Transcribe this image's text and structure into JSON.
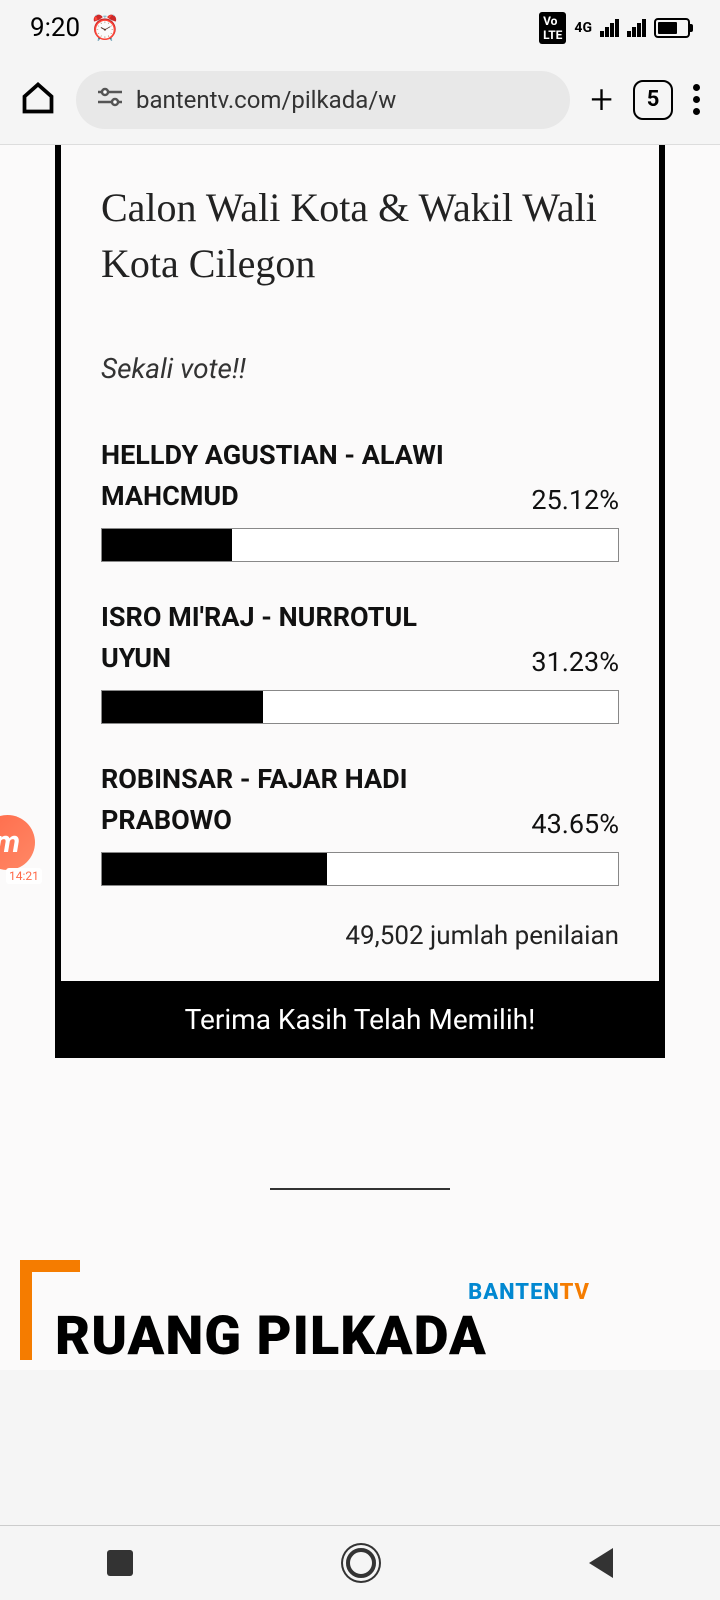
{
  "statusBar": {
    "time": "9:20",
    "network": "4G"
  },
  "browser": {
    "url": "bantentv.com/pilkada/w",
    "tabCount": "5"
  },
  "poll": {
    "title": "Calon Wali Kota & Wakil Wali Kota Cilegon",
    "subtitle": "Sekali vote!!",
    "options": [
      {
        "name": "HELLDY AGUSTIAN - ALAWI MAHCMUD",
        "percent": "25.12%",
        "value": 25.12
      },
      {
        "name": "ISRO MI'RAJ - NURROTUL UYUN",
        "percent": "31.23%",
        "value": 31.23
      },
      {
        "name": "ROBINSAR - FAJAR HADI PRABOWO",
        "percent": "43.65%",
        "value": 43.65
      }
    ],
    "totalText": "49,502 jumlah penilaian",
    "footer": "Terima Kasih Telah Memilih!",
    "barFillColor": "#000000",
    "barBgColor": "#ffffff",
    "barBorderColor": "#888888"
  },
  "banner": {
    "brandPart1": "BANTEN",
    "brandPart2": "TV",
    "text": "RUANG PILKADA",
    "bracketColor": "#f57c00",
    "brandBlue": "#0288d1",
    "brandOrange": "#f57c00"
  },
  "floatingBubble": {
    "letter": "m",
    "time": "14:21"
  }
}
